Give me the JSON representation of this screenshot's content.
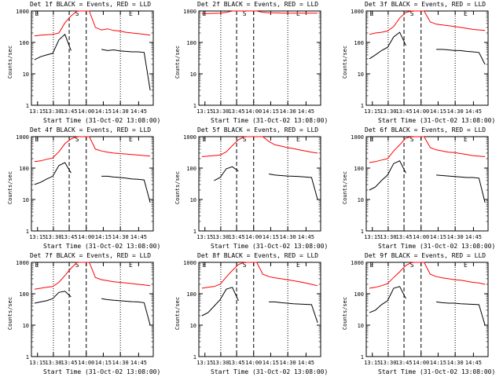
{
  "chart_data": [
    {
      "type": "line",
      "title": "Det 1f BLACK = Events, RED = LLD",
      "xlabel": "Start Time (31-Oct-02 13:08:00)",
      "ylabel": "Counts/sec",
      "xticks": [
        "13:15",
        "13:30",
        "13:45",
        "14:00",
        "14:15",
        "14:30",
        "14:45"
      ],
      "yticks": [
        "1",
        "10",
        "100",
        "1000"
      ],
      "ylim": [
        1,
        1000
      ],
      "yscale": "log",
      "markers": [
        "E",
        "S",
        "E"
      ],
      "series": [
        {
          "name": "RED = LLD",
          "color": "#ff0000",
          "values": [
            160,
            170,
            175,
            180,
            200,
            420,
            700,
            1000,
            1000,
            1000,
            300,
            250,
            270,
            240,
            230,
            210,
            200,
            190,
            180,
            170
          ]
        },
        {
          "name": "BLACK = Events",
          "color": "#000000",
          "values": [
            28,
            35,
            40,
            45,
            120,
            180,
            55,
            null,
            null,
            null,
            null,
            60,
            55,
            58,
            54,
            52,
            50,
            50,
            48,
            3
          ]
        }
      ]
    },
    {
      "type": "line",
      "title": "Det 2f BLACK = Events, RED = LLD",
      "xlabel": "Start Time (31-Oct-02 13:08:00)",
      "ylabel": "Counts/sec",
      "xticks": [
        "13:15",
        "13:30",
        "13:45",
        "14:00",
        "14:15",
        "14:30",
        "14:45"
      ],
      "yticks": [
        "1",
        "10",
        "100",
        "1000"
      ],
      "ylim": [
        1,
        1000
      ],
      "yscale": "log",
      "markers": [
        "E",
        "S",
        "E"
      ],
      "series": [
        {
          "name": "RED = LLD",
          "color": "#ff0000",
          "values": [
            820,
            830,
            840,
            850,
            900,
            1000,
            1000,
            1000,
            1000,
            1000,
            900,
            880,
            870,
            860,
            855,
            850,
            850,
            850,
            850,
            850
          ]
        },
        {
          "name": "BLACK = Events",
          "color": "#000000",
          "values": [
            null,
            null,
            null,
            null,
            null,
            null,
            null,
            null,
            null,
            null,
            null,
            null,
            null,
            null,
            null,
            null,
            null,
            null,
            null,
            null
          ]
        }
      ]
    },
    {
      "type": "line",
      "title": "Det 3f BLACK = Events, RED = LLD",
      "xlabel": "Start Time (31-Oct-02 13:08:00)",
      "ylabel": "Counts/sec",
      "xticks": [
        "13:15",
        "13:30",
        "13:45",
        "14:00",
        "14:15",
        "14:30",
        "14:45"
      ],
      "yticks": [
        "1",
        "10",
        "100",
        "1000"
      ],
      "ylim": [
        1,
        1000
      ],
      "yscale": "log",
      "markers": [
        "E",
        "S",
        "E"
      ],
      "series": [
        {
          "name": "RED = LLD",
          "color": "#ff0000",
          "values": [
            180,
            200,
            210,
            230,
            320,
            600,
            900,
            1000,
            1000,
            1000,
            450,
            380,
            360,
            340,
            320,
            300,
            280,
            260,
            250,
            240
          ]
        },
        {
          "name": "BLACK = Events",
          "color": "#000000",
          "values": [
            30,
            40,
            55,
            70,
            150,
            210,
            80,
            null,
            null,
            null,
            null,
            60,
            60,
            58,
            55,
            55,
            52,
            50,
            48,
            20
          ]
        }
      ]
    },
    {
      "type": "line",
      "title": "Det 4f BLACK = Events, RED = LLD",
      "xlabel": "Start Time (31-Oct-02 13:08:00)",
      "ylabel": "Counts/sec",
      "xticks": [
        "13:15",
        "13:30",
        "13:45",
        "14:00",
        "14:15",
        "14:30",
        "14:45"
      ],
      "yticks": [
        "1",
        "10",
        "100",
        "1000"
      ],
      "ylim": [
        1,
        1000
      ],
      "yscale": "log",
      "markers": [
        "E",
        "S",
        "E"
      ],
      "series": [
        {
          "name": "RED = LLD",
          "color": "#ff0000",
          "values": [
            160,
            170,
            190,
            210,
            330,
            600,
            850,
            1000,
            1000,
            1000,
            400,
            350,
            320,
            300,
            290,
            280,
            270,
            260,
            250,
            240
          ]
        },
        {
          "name": "BLACK = Events",
          "color": "#000000",
          "values": [
            30,
            35,
            45,
            55,
            120,
            150,
            70,
            null,
            null,
            null,
            null,
            55,
            55,
            52,
            50,
            48,
            45,
            44,
            42,
            8
          ]
        }
      ]
    },
    {
      "type": "line",
      "title": "Det 5f BLACK = Events, RED = LLD",
      "xlabel": "Start Time (31-Oct-02 13:08:00)",
      "ylabel": "Counts/sec",
      "xticks": [
        "13:15",
        "13:30",
        "13:45",
        "14:00",
        "14:15",
        "14:30",
        "14:45"
      ],
      "yticks": [
        "1",
        "10",
        "100",
        "1000"
      ],
      "ylim": [
        1,
        1000
      ],
      "yscale": "log",
      "markers": [
        "E",
        "S",
        "E"
      ],
      "series": [
        {
          "name": "RED = LLD",
          "color": "#ff0000",
          "values": [
            230,
            240,
            250,
            260,
            330,
            520,
            800,
            1000,
            1000,
            1000,
            1000,
            700,
            550,
            500,
            450,
            420,
            380,
            350,
            320,
            300
          ]
        },
        {
          "name": "BLACK = Events",
          "color": "#000000",
          "values": [
            null,
            null,
            40,
            50,
            95,
            110,
            80,
            null,
            null,
            null,
            null,
            65,
            60,
            58,
            56,
            55,
            54,
            52,
            50,
            10
          ]
        }
      ]
    },
    {
      "type": "line",
      "title": "Det 6f BLACK = Events, RED = LLD",
      "xlabel": "Start Time (31-Oct-02 13:08:00)",
      "ylabel": "Counts/sec",
      "xticks": [
        "13:15",
        "13:30",
        "13:45",
        "14:00",
        "14:15",
        "14:30",
        "14:45"
      ],
      "yticks": [
        "1",
        "10",
        "100",
        "1000"
      ],
      "ylim": [
        1,
        1000
      ],
      "yscale": "log",
      "markers": [
        "E",
        "S",
        "E"
      ],
      "series": [
        {
          "name": "RED = LLD",
          "color": "#ff0000",
          "values": [
            150,
            160,
            180,
            200,
            350,
            550,
            900,
            1000,
            1000,
            1000,
            450,
            380,
            350,
            320,
            310,
            290,
            270,
            250,
            240,
            230
          ]
        },
        {
          "name": "BLACK = Events",
          "color": "#000000",
          "values": [
            20,
            25,
            40,
            60,
            140,
            170,
            70,
            null,
            null,
            null,
            null,
            60,
            58,
            56,
            54,
            52,
            50,
            50,
            48,
            8
          ]
        }
      ]
    },
    {
      "type": "line",
      "title": "Det 7f BLACK = Events, RED = LLD",
      "xlabel": "Start Time (31-Oct-02 13:08:00)",
      "ylabel": "Counts/sec",
      "xticks": [
        "13:15",
        "13:30",
        "13:45",
        "14:00",
        "14:15",
        "14:30",
        "14:45"
      ],
      "yticks": [
        "1",
        "10",
        "100",
        "1000"
      ],
      "ylim": [
        1,
        1000
      ],
      "yscale": "log",
      "markers": [
        "E",
        "S",
        "E"
      ],
      "series": [
        {
          "name": "RED = LLD",
          "color": "#ff0000",
          "values": [
            140,
            150,
            160,
            170,
            230,
            380,
            650,
            1000,
            1000,
            1000,
            330,
            280,
            260,
            240,
            230,
            220,
            210,
            200,
            190,
            180
          ]
        },
        {
          "name": "BLACK = Events",
          "color": "#000000",
          "values": [
            50,
            55,
            60,
            70,
            110,
            120,
            80,
            null,
            null,
            null,
            null,
            70,
            65,
            62,
            60,
            58,
            56,
            55,
            52,
            10
          ]
        }
      ]
    },
    {
      "type": "line",
      "title": "Det 8f BLACK = Events, RED = LLD",
      "xlabel": "Start Time (31-Oct-02 13:08:00)",
      "ylabel": "Counts/sec",
      "xticks": [
        "13:15",
        "13:30",
        "13:45",
        "14:00",
        "14:15",
        "14:30",
        "14:45"
      ],
      "yticks": [
        "1",
        "10",
        "100",
        "1000"
      ],
      "ylim": [
        1,
        1000
      ],
      "yscale": "log",
      "markers": [
        "E",
        "S",
        "E"
      ],
      "series": [
        {
          "name": "RED = LLD",
          "color": "#ff0000",
          "values": [
            150,
            160,
            170,
            200,
            340,
            550,
            850,
            1000,
            1000,
            1000,
            420,
            350,
            320,
            300,
            280,
            260,
            240,
            220,
            200,
            180
          ]
        },
        {
          "name": "BLACK = Events",
          "color": "#000000",
          "values": [
            20,
            25,
            40,
            65,
            140,
            160,
            60,
            null,
            null,
            null,
            null,
            55,
            55,
            52,
            50,
            48,
            47,
            46,
            45,
            12
          ]
        }
      ]
    },
    {
      "type": "line",
      "title": "Det 9f BLACK = Events, RED = LLD",
      "xlabel": "Start Time (31-Oct-02 13:08:00)",
      "ylabel": "Counts/sec",
      "xticks": [
        "13:15",
        "13:30",
        "13:45",
        "14:00",
        "14:15",
        "14:30",
        "14:45"
      ],
      "yticks": [
        "1",
        "10",
        "100",
        "1000"
      ],
      "ylim": [
        1,
        1000
      ],
      "yscale": "log",
      "markers": [
        "E",
        "S",
        "E"
      ],
      "series": [
        {
          "name": "RED = LLD",
          "color": "#ff0000",
          "values": [
            150,
            160,
            180,
            210,
            330,
            500,
            800,
            1000,
            1000,
            1000,
            420,
            350,
            320,
            300,
            280,
            270,
            250,
            230,
            220,
            200
          ]
        },
        {
          "name": "BLACK = Events",
          "color": "#000000",
          "values": [
            25,
            30,
            45,
            60,
            150,
            170,
            70,
            null,
            null,
            null,
            null,
            55,
            52,
            50,
            50,
            48,
            47,
            46,
            45,
            10
          ]
        }
      ]
    }
  ]
}
